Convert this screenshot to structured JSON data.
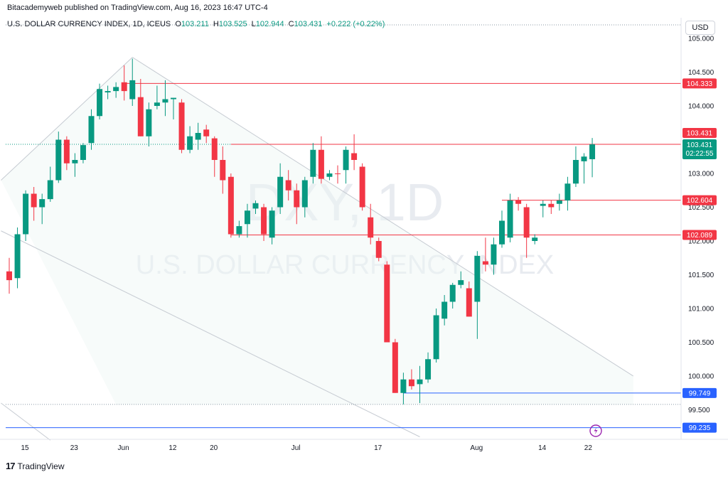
{
  "header": {
    "caption": "Bitacademyweb published on TradingView.com, Aug 16, 2023 16:47 UTC-4",
    "symbol": "U.S. DOLLAR CURRENCY INDEX, 1D, ICEUS",
    "o_label": "O",
    "o_value": "103.211",
    "h_label": "H",
    "h_value": "103.525",
    "l_label": "L",
    "l_value": "102.944",
    "c_label": "C",
    "c_value": "103.431",
    "change": "+0.222 (+0.22%)"
  },
  "currency": "USD",
  "footer": {
    "brand": "TradingView",
    "logo_mark": "17"
  },
  "watermark": {
    "ticker": "DXY, 1D",
    "name": "U.S. DOLLAR CURRENCY INDEX"
  },
  "colors": {
    "up": "#089981",
    "down": "#f23645",
    "red_level": "#f23645",
    "blue_level": "#2962ff",
    "trend": "#c6cbd2"
  },
  "chart_data": {
    "type": "candlestick",
    "title": "",
    "xlabel": "",
    "ylabel": "",
    "y_axis_position": "right",
    "ylim": [
      99.3,
      105.25
    ],
    "y_ticks": [
      "105.000",
      "104.500",
      "104.000",
      "103.000",
      "102.500",
      "102.000",
      "101.500",
      "101.000",
      "100.500",
      "100.000",
      "99.500"
    ],
    "x_ticks": [
      {
        "label": "15",
        "bar": 0
      },
      {
        "label": "23",
        "bar": 6
      },
      {
        "label": "Jun",
        "bar": 12
      },
      {
        "label": "12",
        "bar": 18
      },
      {
        "label": "20",
        "bar": 23
      },
      {
        "label": "Jul",
        "bar": 33
      },
      {
        "label": "17",
        "bar": 43
      },
      {
        "label": "Aug",
        "bar": 55
      },
      {
        "label": "14",
        "bar": 63
      },
      {
        "label": "22",
        "bar": 68.6
      }
    ],
    "candles": [
      {
        "o": 101.55,
        "h": 101.75,
        "l": 101.22,
        "c": 101.42
      },
      {
        "o": 101.45,
        "h": 102.2,
        "l": 101.3,
        "c": 102.1
      },
      {
        "o": 102.1,
        "h": 102.75,
        "l": 102.0,
        "c": 102.7
      },
      {
        "o": 102.7,
        "h": 102.8,
        "l": 102.3,
        "c": 102.5
      },
      {
        "o": 102.5,
        "h": 102.7,
        "l": 102.25,
        "c": 102.62
      },
      {
        "o": 102.62,
        "h": 103.1,
        "l": 102.58,
        "c": 102.9
      },
      {
        "o": 102.9,
        "h": 103.62,
        "l": 102.86,
        "c": 103.5
      },
      {
        "o": 103.5,
        "h": 103.55,
        "l": 103.05,
        "c": 103.15
      },
      {
        "o": 103.15,
        "h": 103.3,
        "l": 102.95,
        "c": 103.2
      },
      {
        "o": 103.2,
        "h": 103.45,
        "l": 103.15,
        "c": 103.42
      },
      {
        "o": 103.45,
        "h": 103.95,
        "l": 103.35,
        "c": 103.85
      },
      {
        "o": 103.85,
        "h": 104.33,
        "l": 103.8,
        "c": 104.25
      },
      {
        "o": 104.2,
        "h": 104.3,
        "l": 104.1,
        "c": 104.22
      },
      {
        "o": 104.22,
        "h": 104.35,
        "l": 104.12,
        "c": 104.28
      },
      {
        "o": 104.35,
        "h": 104.6,
        "l": 104.08,
        "c": 104.22
      },
      {
        "o": 104.1,
        "h": 104.7,
        "l": 104.0,
        "c": 104.38
      },
      {
        "o": 104.13,
        "h": 104.4,
        "l": 103.55,
        "c": 103.55
      },
      {
        "o": 103.55,
        "h": 104.05,
        "l": 103.4,
        "c": 103.95
      },
      {
        "o": 104.0,
        "h": 104.3,
        "l": 103.95,
        "c": 104.05
      },
      {
        "o": 104.05,
        "h": 104.38,
        "l": 103.85,
        "c": 104.1
      },
      {
        "o": 104.1,
        "h": 104.12,
        "l": 103.8,
        "c": 104.12
      },
      {
        "o": 104.05,
        "h": 104.1,
        "l": 103.3,
        "c": 103.35
      },
      {
        "o": 103.35,
        "h": 103.7,
        "l": 103.3,
        "c": 103.55
      },
      {
        "o": 103.5,
        "h": 103.75,
        "l": 103.35,
        "c": 103.6
      },
      {
        "o": 103.65,
        "h": 103.72,
        "l": 103.45,
        "c": 103.55
      },
      {
        "o": 103.52,
        "h": 103.55,
        "l": 102.95,
        "c": 103.2
      },
      {
        "o": 103.2,
        "h": 103.4,
        "l": 102.7,
        "c": 102.9
      },
      {
        "o": 102.95,
        "h": 103.0,
        "l": 102.05,
        "c": 102.1
      },
      {
        "o": 102.1,
        "h": 102.3,
        "l": 102.05,
        "c": 102.22
      },
      {
        "o": 102.25,
        "h": 102.55,
        "l": 102.05,
        "c": 102.45
      },
      {
        "o": 102.48,
        "h": 102.6,
        "l": 102.4,
        "c": 102.56
      },
      {
        "o": 102.5,
        "h": 102.55,
        "l": 102.0,
        "c": 102.1
      },
      {
        "o": 102.05,
        "h": 102.5,
        "l": 101.95,
        "c": 102.45
      },
      {
        "o": 102.5,
        "h": 103.15,
        "l": 102.4,
        "c": 102.95
      },
      {
        "o": 102.9,
        "h": 103.05,
        "l": 102.6,
        "c": 102.75
      },
      {
        "o": 102.75,
        "h": 102.85,
        "l": 102.25,
        "c": 102.5
      },
      {
        "o": 102.5,
        "h": 102.95,
        "l": 102.35,
        "c": 102.9
      },
      {
        "o": 102.95,
        "h": 103.45,
        "l": 102.85,
        "c": 103.35
      },
      {
        "o": 103.35,
        "h": 103.55,
        "l": 102.85,
        "c": 102.92
      },
      {
        "o": 102.95,
        "h": 103.05,
        "l": 102.9,
        "c": 103.0
      },
      {
        "o": 103.0,
        "h": 103.12,
        "l": 102.85,
        "c": 102.99
      },
      {
        "o": 103.05,
        "h": 103.4,
        "l": 102.85,
        "c": 103.35
      },
      {
        "o": 103.3,
        "h": 103.58,
        "l": 103.05,
        "c": 103.2
      },
      {
        "o": 103.1,
        "h": 103.15,
        "l": 102.45,
        "c": 102.5
      },
      {
        "o": 102.35,
        "h": 102.55,
        "l": 101.95,
        "c": 102.05
      },
      {
        "o": 102.0,
        "h": 102.05,
        "l": 101.7,
        "c": 101.75
      },
      {
        "o": 101.65,
        "h": 101.7,
        "l": 100.5,
        "c": 100.5
      },
      {
        "o": 100.5,
        "h": 100.55,
        "l": 99.75,
        "c": 99.75
      },
      {
        "o": 99.75,
        "h": 100.05,
        "l": 99.58,
        "c": 99.95
      },
      {
        "o": 99.95,
        "h": 100.1,
        "l": 99.8,
        "c": 99.85
      },
      {
        "o": 99.88,
        "h": 100.15,
        "l": 99.6,
        "c": 99.95
      },
      {
        "o": 99.95,
        "h": 100.35,
        "l": 99.9,
        "c": 100.25
      },
      {
        "o": 100.25,
        "h": 101.0,
        "l": 100.2,
        "c": 100.9
      },
      {
        "o": 100.85,
        "h": 101.2,
        "l": 100.75,
        "c": 101.1
      },
      {
        "o": 101.1,
        "h": 101.38,
        "l": 101.0,
        "c": 101.35
      },
      {
        "o": 101.35,
        "h": 101.55,
        "l": 101.3,
        "c": 101.42
      },
      {
        "o": 101.3,
        "h": 101.4,
        "l": 100.88,
        "c": 100.88
      },
      {
        "o": 101.1,
        "h": 101.85,
        "l": 100.55,
        "c": 101.78
      },
      {
        "o": 101.7,
        "h": 102.05,
        "l": 101.55,
        "c": 101.65
      },
      {
        "o": 101.65,
        "h": 102.05,
        "l": 101.5,
        "c": 101.95
      },
      {
        "o": 101.95,
        "h": 102.45,
        "l": 101.9,
        "c": 102.3
      },
      {
        "o": 102.05,
        "h": 102.7,
        "l": 101.98,
        "c": 102.6
      },
      {
        "o": 102.6,
        "h": 102.65,
        "l": 102.45,
        "c": 102.55
      },
      {
        "o": 102.5,
        "h": 102.55,
        "l": 101.75,
        "c": 102.05
      },
      {
        "o": 102.0,
        "h": 102.1,
        "l": 101.95,
        "c": 102.05
      },
      {
        "o": 102.52,
        "h": 102.6,
        "l": 102.35,
        "c": 102.55
      },
      {
        "o": 102.55,
        "h": 102.6,
        "l": 102.4,
        "c": 102.5
      },
      {
        "o": 102.55,
        "h": 102.7,
        "l": 102.45,
        "c": 102.6
      },
      {
        "o": 102.6,
        "h": 102.95,
        "l": 102.45,
        "c": 102.85
      },
      {
        "o": 102.85,
        "h": 103.4,
        "l": 102.8,
        "c": 103.2
      },
      {
        "o": 103.18,
        "h": 103.3,
        "l": 102.85,
        "c": 103.25
      },
      {
        "o": 103.211,
        "h": 103.525,
        "l": 102.944,
        "c": 103.431
      }
    ],
    "levels": [
      {
        "name": "level-104333",
        "value": 104.333,
        "label": "104.333",
        "color": "red",
        "start_bar": 14
      },
      {
        "name": "level-103431",
        "value": 103.431,
        "label": "103.431",
        "color": "red",
        "start_bar": -1,
        "style": "current"
      },
      {
        "name": "level-102604",
        "value": 102.604,
        "label": "102.604",
        "color": "red",
        "start_bar": 60
      },
      {
        "name": "level-102089",
        "value": 102.089,
        "label": "102.089",
        "color": "red",
        "start_bar": 27
      },
      {
        "name": "level-99749",
        "value": 99.749,
        "label": "99.749",
        "color": "blue",
        "start_bar": 48
      },
      {
        "name": "level-99235",
        "value": 99.235,
        "label": "99.235",
        "color": "blue",
        "start_bar": -1
      }
    ],
    "dotted_levels": [
      105.2,
      99.58
    ],
    "last_price": {
      "value": 103.431,
      "label": "103.431",
      "countdown": "02:22:55"
    },
    "trendlines": [
      {
        "from": {
          "bar": -1,
          "price": 102.9
        },
        "to": {
          "bar": 15,
          "price": 104.72
        }
      },
      {
        "from": {
          "bar": 15,
          "price": 104.72
        },
        "to": {
          "bar": 76,
          "price": 100.0
        }
      },
      {
        "from": {
          "bar": -1,
          "price": 102.15
        },
        "to": {
          "bar": 50,
          "price": 99.1
        }
      },
      {
        "from": {
          "bar": -1,
          "price": 99.6
        },
        "to": {
          "bar": 5,
          "price": 99.05
        }
      }
    ],
    "grid": false,
    "legend": "top-left"
  }
}
